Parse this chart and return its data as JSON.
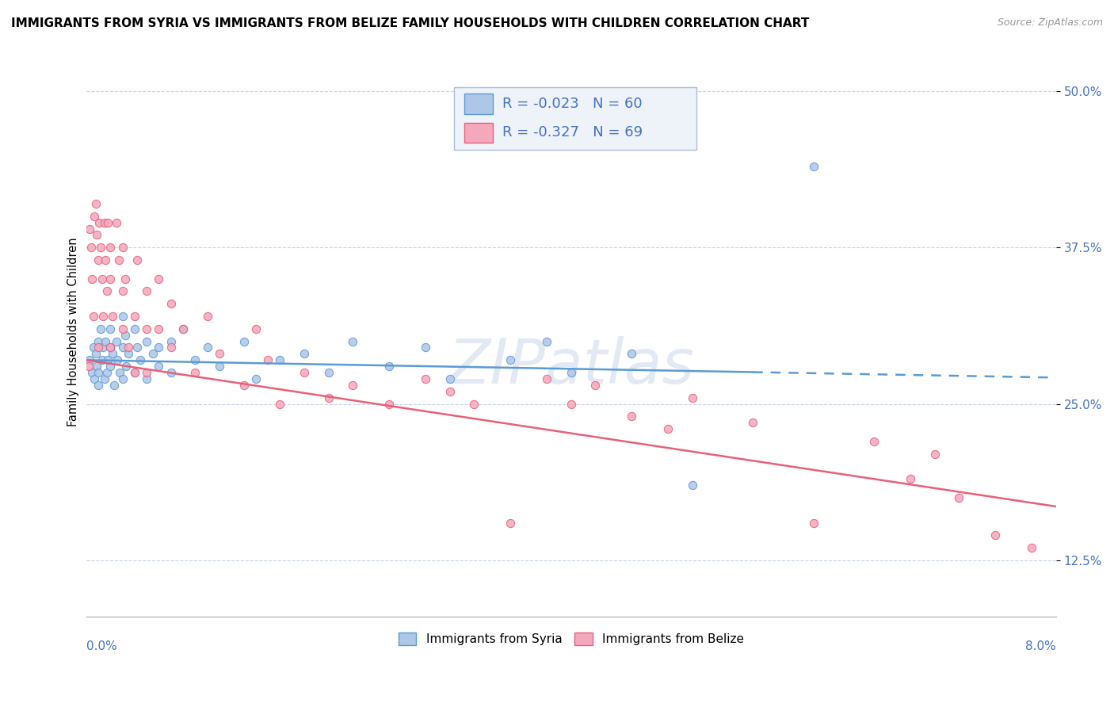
{
  "title": "IMMIGRANTS FROM SYRIA VS IMMIGRANTS FROM BELIZE FAMILY HOUSEHOLDS WITH CHILDREN CORRELATION CHART",
  "source": "Source: ZipAtlas.com",
  "ylabel": "Family Households with Children",
  "xmin": 0.0,
  "xmax": 0.08,
  "ymin": 0.08,
  "ymax": 0.535,
  "yticks": [
    0.125,
    0.25,
    0.375,
    0.5
  ],
  "ytick_labels": [
    "12.5%",
    "25.0%",
    "37.5%",
    "50.0%"
  ],
  "legend_r_syria": "-0.023",
  "legend_n_syria": "60",
  "legend_r_belize": "-0.327",
  "legend_n_belize": "69",
  "color_syria": "#aec6e8",
  "color_belize": "#f4a8bc",
  "line_color_syria": "#5b9bd5",
  "line_color_belize": "#e8607a",
  "watermark": "ZIPatlas",
  "syria_x": [
    0.0003,
    0.0005,
    0.0006,
    0.0007,
    0.0008,
    0.0009,
    0.001,
    0.001,
    0.001,
    0.0012,
    0.0013,
    0.0014,
    0.0015,
    0.0016,
    0.0017,
    0.0018,
    0.002,
    0.002,
    0.002,
    0.0022,
    0.0023,
    0.0025,
    0.0026,
    0.0028,
    0.003,
    0.003,
    0.003,
    0.0032,
    0.0033,
    0.0035,
    0.004,
    0.004,
    0.0042,
    0.0045,
    0.005,
    0.005,
    0.0055,
    0.006,
    0.006,
    0.007,
    0.007,
    0.008,
    0.009,
    0.01,
    0.011,
    0.013,
    0.014,
    0.016,
    0.018,
    0.02,
    0.022,
    0.025,
    0.028,
    0.03,
    0.035,
    0.038,
    0.04,
    0.045,
    0.05,
    0.06
  ],
  "syria_y": [
    0.285,
    0.275,
    0.295,
    0.27,
    0.29,
    0.28,
    0.3,
    0.275,
    0.265,
    0.31,
    0.285,
    0.295,
    0.27,
    0.3,
    0.275,
    0.285,
    0.31,
    0.295,
    0.28,
    0.29,
    0.265,
    0.3,
    0.285,
    0.275,
    0.32,
    0.295,
    0.27,
    0.305,
    0.28,
    0.29,
    0.31,
    0.275,
    0.295,
    0.285,
    0.3,
    0.27,
    0.29,
    0.295,
    0.28,
    0.3,
    0.275,
    0.31,
    0.285,
    0.295,
    0.28,
    0.3,
    0.27,
    0.285,
    0.29,
    0.275,
    0.3,
    0.28,
    0.295,
    0.27,
    0.285,
    0.3,
    0.275,
    0.29,
    0.185,
    0.44
  ],
  "belize_x": [
    0.0002,
    0.0003,
    0.0004,
    0.0005,
    0.0006,
    0.0007,
    0.0008,
    0.0009,
    0.001,
    0.001,
    0.0011,
    0.0012,
    0.0013,
    0.0014,
    0.0015,
    0.0016,
    0.0017,
    0.0018,
    0.002,
    0.002,
    0.002,
    0.0022,
    0.0025,
    0.0027,
    0.003,
    0.003,
    0.003,
    0.0032,
    0.0035,
    0.004,
    0.004,
    0.0042,
    0.005,
    0.005,
    0.005,
    0.006,
    0.006,
    0.007,
    0.007,
    0.008,
    0.009,
    0.01,
    0.011,
    0.013,
    0.014,
    0.015,
    0.016,
    0.018,
    0.02,
    0.022,
    0.025,
    0.028,
    0.03,
    0.032,
    0.035,
    0.038,
    0.04,
    0.042,
    0.045,
    0.048,
    0.05,
    0.055,
    0.06,
    0.065,
    0.068,
    0.07,
    0.072,
    0.075,
    0.078
  ],
  "belize_y": [
    0.28,
    0.39,
    0.375,
    0.35,
    0.32,
    0.4,
    0.41,
    0.385,
    0.365,
    0.295,
    0.395,
    0.375,
    0.35,
    0.32,
    0.395,
    0.365,
    0.34,
    0.395,
    0.375,
    0.35,
    0.295,
    0.32,
    0.395,
    0.365,
    0.34,
    0.31,
    0.375,
    0.35,
    0.295,
    0.32,
    0.275,
    0.365,
    0.34,
    0.31,
    0.275,
    0.35,
    0.31,
    0.33,
    0.295,
    0.31,
    0.275,
    0.32,
    0.29,
    0.265,
    0.31,
    0.285,
    0.25,
    0.275,
    0.255,
    0.265,
    0.25,
    0.27,
    0.26,
    0.25,
    0.155,
    0.27,
    0.25,
    0.265,
    0.24,
    0.23,
    0.255,
    0.235,
    0.155,
    0.22,
    0.19,
    0.21,
    0.175,
    0.145,
    0.135
  ],
  "syria_line_x0": 0.0,
  "syria_line_x1": 0.08,
  "syria_line_y0": 0.285,
  "syria_line_y1": 0.271,
  "syria_line_solid_end": 0.055,
  "belize_line_x0": 0.0,
  "belize_line_x1": 0.08,
  "belize_line_y0": 0.285,
  "belize_line_y1": 0.168
}
